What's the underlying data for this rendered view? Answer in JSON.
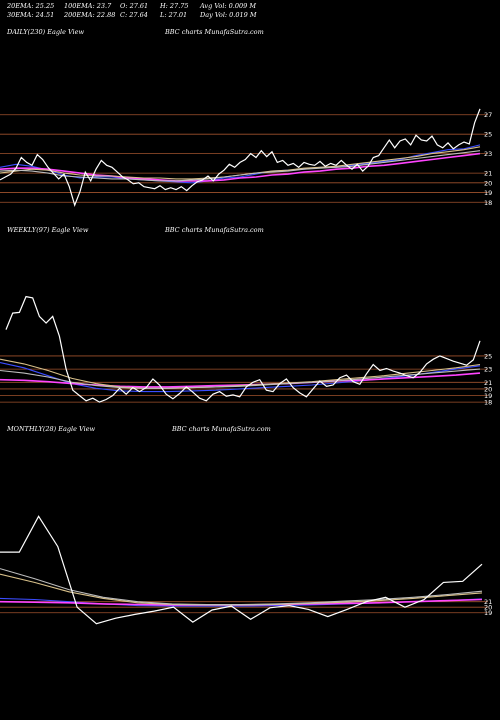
{
  "header": {
    "ema20": "20EMA: 25.25",
    "ema100": "100EMA: 23.7",
    "open": "O: 27.61",
    "high": "H: 27.75",
    "avg_vol": "Avg Vol: 0.009 M",
    "ema30": "30EMA: 24.51",
    "ema200": "200EMA: 22.88",
    "close": "C: 27.64",
    "low": "L: 27.01",
    "day_vol": "Day Vol: 0.019 M"
  },
  "panels": [
    {
      "label": "DAILY(230) Eagle  View",
      "credit": "BBC charts MunafaSutra.com"
    },
    {
      "label": "WEEKLY(97) Eagle  View",
      "credit": "BBC charts MunafaSutra.com"
    },
    {
      "label": "MONTHLY(28) Eagle  View",
      "credit": "BBC charts MunafaSutra.com"
    }
  ],
  "colors": {
    "background": "#000000",
    "price": "#ffffff",
    "ema_blue": "#3a4cff",
    "ema_magenta": "#ff44ff",
    "ema_tan": "#d8c08a",
    "ema_gray": "#bdbdbd",
    "level_line": "#a0522d"
  },
  "chart_data": [
    {
      "type": "line",
      "title": "DAILY(230) Eagle  View",
      "ylim": [
        17,
        28
      ],
      "tick_labels": [
        "27",
        "25",
        "23",
        "21",
        "20",
        "19",
        "18"
      ],
      "levels": [
        27,
        25,
        23,
        21,
        20,
        19,
        18
      ],
      "series": [
        {
          "role": "price",
          "values": [
            20.3,
            20.6,
            20.9,
            21.5,
            22.6,
            22.1,
            21.8,
            22.9,
            22.4,
            21.6,
            21.0,
            20.4,
            20.9,
            19.6,
            17.7,
            19.1,
            21.1,
            20.2,
            21.4,
            22.3,
            21.8,
            21.6,
            21.1,
            20.6,
            20.3,
            19.9,
            20.0,
            19.6,
            19.5,
            19.4,
            19.7,
            19.3,
            19.5,
            19.3,
            19.6,
            19.2,
            19.7,
            20.1,
            20.3,
            20.7,
            20.2,
            20.9,
            21.3,
            21.9,
            21.6,
            22.1,
            22.4,
            23.0,
            22.6,
            23.3,
            22.7,
            23.2,
            22.1,
            22.3,
            21.8,
            22.0,
            21.6,
            22.1,
            21.9,
            21.8,
            22.2,
            21.7,
            22.0,
            21.8,
            22.3,
            21.8,
            21.4,
            21.9,
            21.2,
            21.7,
            22.6,
            22.8,
            23.6,
            24.4,
            23.6,
            24.3,
            24.5,
            23.9,
            24.9,
            24.4,
            24.3,
            24.8,
            23.9,
            23.6,
            24.1,
            23.5,
            23.9,
            24.2,
            24.0,
            26.2,
            27.6
          ]
        },
        {
          "role": "ema",
          "color": "#3a4cff",
          "values": [
            21.6,
            21.9,
            21.7,
            21.3,
            20.8,
            20.5,
            20.6,
            20.6,
            20.4,
            20.3,
            20.2,
            20.1,
            20.0,
            20.2,
            20.5,
            20.6,
            20.9,
            21.2,
            21.3,
            21.4,
            21.6,
            21.6,
            21.8,
            22.0,
            22.2,
            22.4,
            22.8,
            23.1,
            23.4,
            23.5,
            23.9
          ]
        },
        {
          "role": "ema",
          "color": "#ff44ff",
          "values": [
            21.4,
            21.5,
            21.5,
            21.4,
            21.2,
            21.0,
            20.8,
            20.7,
            20.5,
            20.4,
            20.3,
            20.2,
            20.2,
            20.2,
            20.3,
            20.5,
            20.6,
            20.8,
            20.9,
            21.1,
            21.2,
            21.4,
            21.5,
            21.7,
            21.8,
            22.0,
            22.2,
            22.4,
            22.6,
            22.8,
            23.0
          ]
        },
        {
          "role": "ema",
          "color": "#d8c08a",
          "values": [
            21.0,
            21.2,
            21.4,
            21.3,
            21.0,
            20.8,
            20.7,
            20.7,
            20.6,
            20.5,
            20.5,
            20.4,
            20.4,
            20.5,
            20.6,
            20.8,
            21.0,
            21.2,
            21.3,
            21.5,
            21.6,
            21.7,
            21.9,
            22.1,
            22.3,
            22.5,
            22.7,
            23.0,
            23.2,
            23.4,
            23.7
          ]
        },
        {
          "role": "ema",
          "color": "#bdbdbd",
          "values": [
            21.2,
            21.3,
            21.2,
            21.0,
            20.7,
            20.6,
            20.5,
            20.4,
            20.4,
            20.3,
            20.2,
            20.2,
            20.3,
            20.4,
            20.6,
            20.8,
            21.0,
            21.1,
            21.2,
            21.4,
            21.5,
            21.6,
            21.7,
            21.9,
            22.1,
            22.3,
            22.5,
            22.7,
            22.9,
            23.1,
            23.3
          ]
        }
      ]
    },
    {
      "type": "line",
      "title": "WEEKLY(97) Eagle  View",
      "ylim": [
        16.5,
        35
      ],
      "tick_labels": [
        "25",
        "23",
        "21",
        "20",
        "19",
        "18"
      ],
      "levels": [
        25,
        23,
        21,
        20,
        19,
        18
      ],
      "series": [
        {
          "role": "price",
          "values": [
            29.0,
            31.5,
            31.6,
            34.0,
            33.8,
            31.0,
            30.0,
            31.0,
            28.0,
            23.0,
            19.8,
            19.0,
            18.2,
            18.6,
            18.0,
            18.4,
            19.0,
            20.1,
            19.2,
            20.2,
            19.6,
            20.2,
            21.5,
            20.6,
            19.2,
            18.5,
            19.3,
            20.3,
            19.5,
            18.6,
            18.2,
            19.2,
            19.6,
            18.9,
            19.1,
            18.8,
            20.3,
            21.0,
            21.4,
            19.8,
            19.6,
            20.8,
            21.5,
            20.2,
            19.4,
            18.8,
            20.0,
            21.2,
            20.4,
            20.6,
            21.7,
            22.1,
            21.1,
            20.7,
            22.3,
            23.7,
            22.8,
            23.1,
            22.7,
            22.4,
            22.0,
            21.7,
            22.5,
            23.8,
            24.5,
            25.0,
            24.6,
            24.2,
            23.9,
            23.6,
            24.4,
            27.3
          ]
        },
        {
          "role": "ema",
          "color": "#3a4cff",
          "values": [
            24.0,
            23.2,
            22.0,
            20.8,
            20.1,
            19.7,
            19.6,
            19.6,
            19.7,
            19.8,
            20.0,
            20.2,
            20.4,
            20.6,
            20.9,
            21.2,
            21.6,
            22.0,
            22.5,
            23.0,
            23.5
          ]
        },
        {
          "role": "ema",
          "color": "#ff44ff",
          "values": [
            21.4,
            21.3,
            21.1,
            20.8,
            20.6,
            20.4,
            20.3,
            20.3,
            20.4,
            20.5,
            20.6,
            20.7,
            20.8,
            21.0,
            21.2,
            21.3,
            21.5,
            21.7,
            21.9,
            22.1,
            22.4
          ]
        },
        {
          "role": "ema",
          "color": "#d8c08a",
          "values": [
            24.5,
            23.8,
            22.8,
            21.6,
            20.8,
            20.3,
            20.1,
            20.1,
            20.2,
            20.3,
            20.5,
            20.7,
            20.9,
            21.1,
            21.4,
            21.7,
            22.0,
            22.4,
            22.8,
            23.2,
            23.7
          ]
        },
        {
          "role": "ema",
          "color": "#bdbdbd",
          "values": [
            22.8,
            22.4,
            21.8,
            21.0,
            20.5,
            20.2,
            20.1,
            20.1,
            20.2,
            20.3,
            20.4,
            20.6,
            20.8,
            21.0,
            21.2,
            21.5,
            21.8,
            22.1,
            22.4,
            22.7,
            23.0
          ]
        }
      ]
    },
    {
      "type": "line",
      "title": "MONTHLY(28) Eagle  View",
      "ylim": [
        15.5,
        42
      ],
      "tick_labels": [
        "21",
        "20",
        "19"
      ],
      "levels": [
        21,
        20,
        19
      ],
      "series": [
        {
          "role": "price",
          "values": [
            30.0,
            30.0,
            36.5,
            31.0,
            20.0,
            17.0,
            18.0,
            18.7,
            19.3,
            20.0,
            17.3,
            19.5,
            20.2,
            17.8,
            19.9,
            20.3,
            19.6,
            18.3,
            19.6,
            21.0,
            21.8,
            20.0,
            21.4,
            24.5,
            24.7,
            27.8
          ]
        },
        {
          "role": "ema",
          "color": "#3a4cff",
          "values": [
            21.6,
            21.4,
            21.0,
            20.6,
            20.3,
            20.2,
            20.2,
            20.2,
            20.3,
            20.4,
            20.6,
            20.8,
            21.0,
            21.2,
            21.5
          ]
        },
        {
          "role": "ema",
          "color": "#ff44ff",
          "values": [
            21.0,
            20.9,
            20.8,
            20.6,
            20.5,
            20.4,
            20.4,
            20.4,
            20.5,
            20.6,
            20.7,
            20.8,
            21.0,
            21.2,
            21.4
          ]
        },
        {
          "role": "ema",
          "color": "#d8c08a",
          "values": [
            26.0,
            24.5,
            22.8,
            21.6,
            20.8,
            20.5,
            20.4,
            20.4,
            20.5,
            20.7,
            20.9,
            21.2,
            21.6,
            22.1,
            22.6
          ]
        },
        {
          "role": "ema",
          "color": "#bdbdbd",
          "values": [
            27.0,
            25.2,
            23.2,
            21.8,
            21.0,
            20.6,
            20.5,
            20.5,
            20.6,
            20.8,
            21.1,
            21.4,
            21.8,
            22.3,
            22.9
          ]
        }
      ]
    }
  ]
}
